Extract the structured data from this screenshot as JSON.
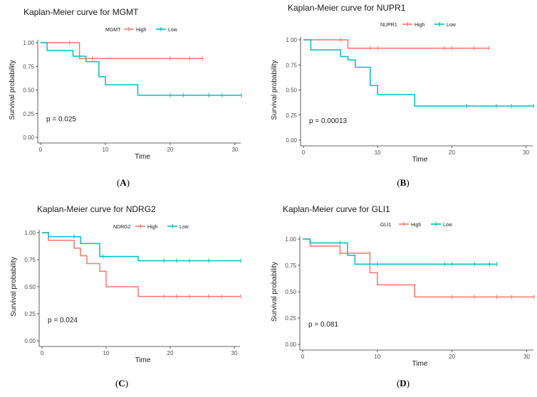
{
  "figure": {
    "background": "#ffffff"
  },
  "chart_data": [
    {
      "type": "line",
      "title": "Kaplan-Meier curve for MGMT",
      "legend": {
        "title": "MGMT",
        "entries": [
          "High",
          "Low"
        ],
        "position": "top"
      },
      "xlabel": "Time",
      "ylabel": "Survival probability",
      "xlim": [
        0,
        31
      ],
      "ylim": [
        0,
        1
      ],
      "xticks": [
        0,
        10,
        20,
        30
      ],
      "yticks": [
        "0.00",
        "0.25",
        "0.50",
        "0.75",
        "1.00"
      ],
      "pvalue": "p = 0.025",
      "caption": "A",
      "series": [
        {
          "name": "High",
          "color": "#f8766d",
          "steps": [
            [
              0,
              1.0
            ],
            [
              6,
              0.833
            ]
          ],
          "end": 25,
          "censors": [
            [
              4.5,
              1.0
            ],
            [
              8,
              0.833
            ],
            [
              20,
              0.833
            ],
            [
              23,
              0.833
            ],
            [
              25,
              0.833
            ]
          ]
        },
        {
          "name": "Low",
          "color": "#00bfc4",
          "steps": [
            [
              0,
              1.0
            ],
            [
              1,
              0.917
            ],
            [
              5,
              0.857
            ],
            [
              7,
              0.8
            ],
            [
              9,
              0.64
            ],
            [
              10,
              0.555
            ],
            [
              15,
              0.445
            ]
          ],
          "end": 31,
          "censors": [
            [
              20,
              0.445
            ],
            [
              22,
              0.445
            ],
            [
              26,
              0.445
            ],
            [
              28,
              0.445
            ],
            [
              31,
              0.445
            ]
          ]
        }
      ]
    },
    {
      "type": "line",
      "title": "Kaplan-Meier curve for NUPR1",
      "legend": {
        "title": "NUPR1",
        "entries": [
          "High",
          "Low"
        ],
        "position": "top"
      },
      "xlabel": "Time",
      "ylabel": "Survival probability",
      "xlim": [
        0,
        31
      ],
      "ylim": [
        0,
        1
      ],
      "xticks": [
        0,
        10,
        20,
        30
      ],
      "yticks": [
        "0.00",
        "0.25",
        "0.50",
        "0.75",
        "1.00"
      ],
      "pvalue": "p = 0.00013",
      "caption": "B",
      "series": [
        {
          "name": "High",
          "color": "#f8766d",
          "steps": [
            [
              0,
              1.0
            ],
            [
              6,
              0.917
            ]
          ],
          "end": 25,
          "censors": [
            [
              5,
              1.0
            ],
            [
              9,
              0.917
            ],
            [
              10,
              0.917
            ],
            [
              19,
              0.917
            ],
            [
              20,
              0.917
            ],
            [
              23,
              0.917
            ],
            [
              25,
              0.917
            ]
          ]
        },
        {
          "name": "Low",
          "color": "#00bfc4",
          "steps": [
            [
              0,
              1.0
            ],
            [
              1,
              0.9
            ],
            [
              5,
              0.833
            ],
            [
              6,
              0.8
            ],
            [
              7,
              0.727
            ],
            [
              9,
              0.545
            ],
            [
              10,
              0.455
            ],
            [
              15,
              0.34
            ]
          ],
          "end": 31,
          "censors": [
            [
              22,
              0.34
            ],
            [
              26,
              0.34
            ],
            [
              28,
              0.34
            ],
            [
              31,
              0.34
            ]
          ]
        }
      ]
    },
    {
      "type": "line",
      "title": "Kaplan-Meier curve for NDRG2",
      "legend": {
        "title": "NDRG2",
        "entries": [
          "High",
          "Low"
        ],
        "position": "top"
      },
      "xlabel": "Time",
      "ylabel": "Survival probability",
      "xlim": [
        0,
        31
      ],
      "ylim": [
        0,
        1
      ],
      "xticks": [
        0,
        10,
        20,
        30
      ],
      "yticks": [
        "0.00",
        "0.25",
        "0.50",
        "0.75",
        "1.00"
      ],
      "pvalue": "p = 0.024",
      "caption": "C",
      "series": [
        {
          "name": "High",
          "color": "#f8766d",
          "steps": [
            [
              0,
              1.0
            ],
            [
              1,
              0.929
            ],
            [
              5,
              0.857
            ],
            [
              6,
              0.786
            ],
            [
              7,
              0.714
            ],
            [
              9,
              0.643
            ],
            [
              10,
              0.5
            ],
            [
              15,
              0.41
            ]
          ],
          "end": 31,
          "censors": [
            [
              19,
              0.41
            ],
            [
              21,
              0.41
            ],
            [
              23,
              0.41
            ],
            [
              26,
              0.41
            ],
            [
              28,
              0.41
            ],
            [
              31,
              0.41
            ]
          ]
        },
        {
          "name": "Low",
          "color": "#00bfc4",
          "steps": [
            [
              0,
              1.0
            ],
            [
              1,
              0.963
            ],
            [
              6,
              0.9
            ],
            [
              9,
              0.78
            ],
            [
              15,
              0.74
            ]
          ],
          "end": 31,
          "censors": [
            [
              5,
              0.963
            ],
            [
              9.5,
              0.78
            ],
            [
              19,
              0.74
            ],
            [
              21,
              0.74
            ],
            [
              23,
              0.74
            ],
            [
              26,
              0.74
            ],
            [
              31,
              0.74
            ]
          ]
        }
      ]
    },
    {
      "type": "line",
      "title": "Kaplan-Meier curve for GLI1",
      "legend": {
        "title": "GLI1",
        "entries": [
          "High",
          "Low"
        ],
        "position": "top"
      },
      "xlabel": "Time",
      "ylabel": "Survival probability",
      "xlim": [
        0,
        31
      ],
      "ylim": [
        0,
        1
      ],
      "xticks": [
        0,
        10,
        20,
        30
      ],
      "yticks": [
        "0.00",
        "0.25",
        "0.50",
        "0.75",
        "1.00"
      ],
      "pvalue": "p = 0.081",
      "caption": "D",
      "series": [
        {
          "name": "High",
          "color": "#f8766d",
          "steps": [
            [
              0,
              1.0
            ],
            [
              1,
              0.933
            ],
            [
              5,
              0.866
            ],
            [
              9,
              0.68
            ],
            [
              10,
              0.565
            ],
            [
              15,
              0.45
            ]
          ],
          "end": 31,
          "censors": [
            [
              5,
              0.866
            ],
            [
              9,
              0.866
            ],
            [
              20,
              0.45
            ],
            [
              23,
              0.45
            ],
            [
              26,
              0.45
            ],
            [
              28,
              0.45
            ],
            [
              31,
              0.45
            ]
          ]
        },
        {
          "name": "Low",
          "color": "#00bfc4",
          "steps": [
            [
              0,
              1.0
            ],
            [
              1,
              0.963
            ],
            [
              6,
              0.846
            ],
            [
              7,
              0.762
            ]
          ],
          "end": 26,
          "censors": [
            [
              5,
              0.963
            ],
            [
              10,
              0.762
            ],
            [
              19,
              0.762
            ],
            [
              20,
              0.762
            ],
            [
              23,
              0.762
            ],
            [
              25,
              0.762
            ],
            [
              26,
              0.762
            ]
          ]
        }
      ]
    }
  ]
}
